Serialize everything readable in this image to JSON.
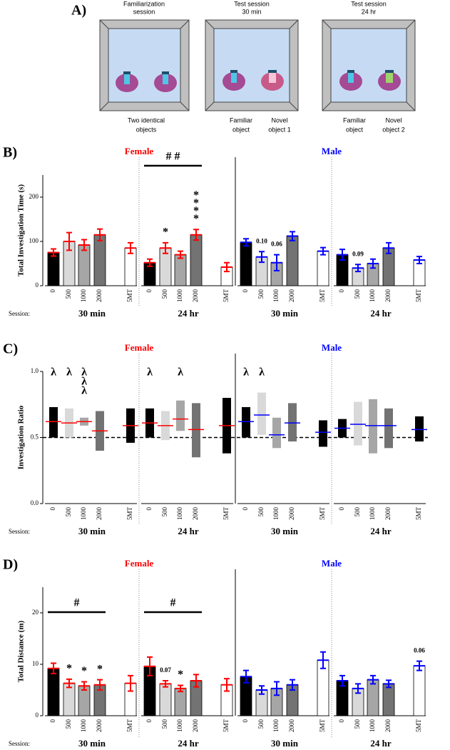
{
  "panel_a": {
    "label": "A)",
    "boxes": [
      {
        "title": [
          "Familiarization",
          "session"
        ],
        "captions": [
          [
            "Two identical",
            "objects"
          ]
        ]
      },
      {
        "title": [
          "Test session",
          "30 min"
        ],
        "captions": [
          [
            "Familiar",
            "object"
          ],
          [
            "Novel",
            "object 1"
          ]
        ]
      },
      {
        "title": [
          "Test session",
          "24 hr"
        ],
        "captions": [
          [
            "Familiar",
            "object"
          ],
          [
            "Novel",
            "object 2"
          ]
        ]
      }
    ]
  },
  "chart_data": [
    {
      "type": "bar",
      "panel": "B)",
      "ylabel": "Total Investigation Time (s)",
      "ylim": [
        0,
        250
      ],
      "yticks": [
        0,
        100,
        200
      ],
      "categories": [
        "0",
        "500",
        "1000",
        "2000",
        "5MT"
      ],
      "colors": [
        "#000000",
        "#d9d9d9",
        "#a6a6a6",
        "#737373",
        "#ffffff"
      ],
      "session_label": "Session:",
      "sexes": [
        {
          "name": "Female",
          "color": "#ff0000",
          "groups": [
            {
              "session": "30 min",
              "values": [
                75,
                100,
                92,
                115,
                85
              ],
              "errors": [
                8,
                20,
                12,
                13,
                12
              ]
            },
            {
              "session": "24 hr",
              "values": [
                52,
                85,
                70,
                115,
                42
              ],
              "errors": [
                8,
                12,
                8,
                12,
                10
              ]
            }
          ]
        },
        {
          "name": "Male",
          "color": "#0000ff",
          "groups": [
            {
              "session": "30 min",
              "values": [
                98,
                65,
                52,
                112,
                78
              ],
              "errors": [
                8,
                12,
                18,
                10,
                8
              ]
            },
            {
              "session": "24 hr",
              "values": [
                70,
                40,
                50,
                85,
                58
              ],
              "errors": [
                12,
                8,
                10,
                12,
                8
              ]
            }
          ]
        }
      ],
      "annotations": [
        {
          "sex": 0,
          "group": 1,
          "from": 0,
          "to": 3,
          "lines": [
            "# #"
          ]
        },
        {
          "sex": 0,
          "group": 1,
          "bar": 1,
          "lines": [
            "*"
          ]
        },
        {
          "sex": 0,
          "group": 1,
          "bar": 3,
          "lines": [
            "*",
            "*",
            "*",
            "*"
          ]
        },
        {
          "sex": 1,
          "group": 0,
          "bar": 1,
          "lines": [
            "0.10"
          ]
        },
        {
          "sex": 1,
          "group": 0,
          "bar": 2,
          "lines": [
            "0.06"
          ]
        },
        {
          "sex": 1,
          "group": 1,
          "bar": 1,
          "lines": [
            "0.09"
          ]
        }
      ]
    },
    {
      "type": "range_bar",
      "panel": "C)",
      "ylabel": "Investigation Ratio",
      "ylim": [
        0,
        1
      ],
      "yticks": [
        {
          "value": 0,
          "label": "0.0"
        },
        {
          "value": 0.5,
          "label": "0.5"
        },
        {
          "value": 1,
          "label": "1.0"
        }
      ],
      "hline": 0.5,
      "categories": [
        "0",
        "500",
        "1000",
        "2000",
        "5MT"
      ],
      "colors": [
        "#000000",
        "#d9d9d9",
        "#a6a6a6",
        "#737373",
        "#000000"
      ],
      "session_label": "Session:",
      "sexes": [
        {
          "name": "Female",
          "color": "#ff0000",
          "groups": [
            {
              "session": "30 min",
              "values": [
                0.62,
                0.61,
                0.62,
                0.55,
                0.59
              ],
              "low": [
                0.5,
                0.5,
                0.59,
                0.4,
                0.46
              ],
              "high": [
                0.73,
                0.72,
                0.65,
                0.7,
                0.72
              ]
            },
            {
              "session": "24 hr",
              "values": [
                0.61,
                0.59,
                0.64,
                0.56,
                0.59
              ],
              "low": [
                0.5,
                0.48,
                0.55,
                0.35,
                0.38
              ],
              "high": [
                0.72,
                0.7,
                0.78,
                0.76,
                0.8
              ]
            }
          ]
        },
        {
          "name": "Male",
          "color": "#0000ff",
          "groups": [
            {
              "session": "30 min",
              "values": [
                0.62,
                0.67,
                0.52,
                0.61,
                0.54
              ],
              "low": [
                0.5,
                0.52,
                0.42,
                0.47,
                0.43
              ],
              "high": [
                0.73,
                0.84,
                0.65,
                0.76,
                0.63
              ]
            },
            {
              "session": "24 hr",
              "values": [
                0.57,
                0.6,
                0.59,
                0.59,
                0.56
              ],
              "low": [
                0.5,
                0.44,
                0.38,
                0.42,
                0.47
              ],
              "high": [
                0.64,
                0.77,
                0.79,
                0.72,
                0.66
              ]
            }
          ]
        }
      ],
      "annotations": [
        {
          "sex": 0,
          "group": 0,
          "bar": 0,
          "lines": [
            "λ"
          ]
        },
        {
          "sex": 0,
          "group": 0,
          "bar": 1,
          "lines": [
            "λ"
          ]
        },
        {
          "sex": 0,
          "group": 0,
          "bar": 2,
          "lines": [
            "λ",
            "λ",
            "λ"
          ]
        },
        {
          "sex": 0,
          "group": 1,
          "bar": 0,
          "lines": [
            "λ"
          ]
        },
        {
          "sex": 0,
          "group": 1,
          "bar": 2,
          "lines": [
            "λ"
          ]
        },
        {
          "sex": 1,
          "group": 0,
          "bar": 0,
          "lines": [
            "λ"
          ]
        },
        {
          "sex": 1,
          "group": 0,
          "bar": 1,
          "lines": [
            "λ"
          ]
        }
      ]
    },
    {
      "type": "bar",
      "panel": "D)",
      "ylabel": "Total Distance (m)",
      "ylim": [
        0,
        25
      ],
      "yticks": [
        0,
        10,
        20
      ],
      "categories": [
        "0",
        "500",
        "1000",
        "2000",
        "5MT"
      ],
      "colors": [
        "#000000",
        "#d9d9d9",
        "#a6a6a6",
        "#737373",
        "#ffffff"
      ],
      "session_label": "Session:",
      "sexes": [
        {
          "name": "Female",
          "color": "#ff0000",
          "groups": [
            {
              "session": "30 min",
              "values": [
                9.2,
                6.3,
                5.8,
                6.0,
                6.3
              ],
              "errors": [
                1,
                0.8,
                0.8,
                1,
                1.5
              ]
            },
            {
              "session": "24 hr",
              "values": [
                9.6,
                6.2,
                5.3,
                6.8,
                6.0
              ],
              "errors": [
                1.8,
                0.6,
                0.6,
                1.2,
                1.2
              ]
            }
          ]
        },
        {
          "name": "Male",
          "color": "#0000ff",
          "groups": [
            {
              "session": "30 min",
              "values": [
                7.6,
                5.0,
                5.3,
                6.0,
                10.8
              ],
              "errors": [
                1.2,
                0.8,
                1.3,
                1,
                1.6
              ]
            },
            {
              "session": "24 hr",
              "values": [
                6.8,
                5.3,
                7.0,
                6.2,
                9.7
              ],
              "errors": [
                1,
                0.9,
                0.8,
                0.7,
                0.9
              ]
            }
          ]
        }
      ],
      "annotations": [
        {
          "sex": 0,
          "group": 0,
          "from": 0,
          "to": 3,
          "lines": [
            "#"
          ]
        },
        {
          "sex": 0,
          "group": 0,
          "bar": 1,
          "lines": [
            "*"
          ]
        },
        {
          "sex": 0,
          "group": 0,
          "bar": 2,
          "lines": [
            "*"
          ]
        },
        {
          "sex": 0,
          "group": 0,
          "bar": 3,
          "lines": [
            "*"
          ]
        },
        {
          "sex": 0,
          "group": 1,
          "from": 0,
          "to": 3,
          "lines": [
            "#"
          ]
        },
        {
          "sex": 0,
          "group": 1,
          "bar": 1,
          "lines": [
            "0.07"
          ]
        },
        {
          "sex": 0,
          "group": 1,
          "bar": 2,
          "lines": [
            "*"
          ]
        },
        {
          "sex": 1,
          "group": 1,
          "bar": 4,
          "lines": [
            "0.06"
          ]
        }
      ]
    }
  ]
}
